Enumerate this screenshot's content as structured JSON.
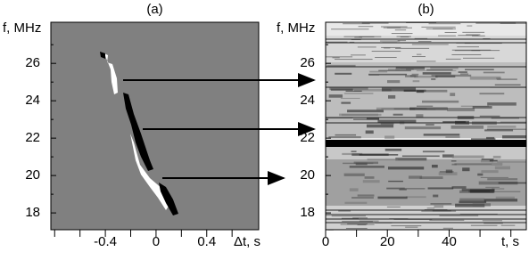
{
  "figure": {
    "panels": [
      {
        "label": "(a)",
        "y_label": "f, MHz",
        "x_label": "Δt, s",
        "xlim": [
          -0.83,
          0.81
        ],
        "ylim": [
          17.1,
          28.2
        ],
        "xticks": [
          -0.4,
          0,
          0.4
        ],
        "x_minor_ticks": [
          -0.8,
          -0.6,
          -0.2,
          0.2,
          0.6
        ],
        "yticks": [
          18,
          20,
          22,
          24,
          26
        ],
        "y_minor_ticks": [
          19,
          21,
          23,
          25,
          27
        ]
      },
      {
        "label": "(b)",
        "y_label": "f, MHz",
        "x_label": "t, s",
        "xlim": [
          0,
          65
        ],
        "ylim": [
          17.1,
          28.2
        ],
        "xticks": [
          0,
          20,
          40
        ],
        "x_minor_ticks": [
          10,
          30,
          50,
          60
        ],
        "yticks": [
          18,
          20,
          22,
          24,
          26
        ],
        "y_minor_ticks": [
          19,
          21,
          23,
          25,
          27
        ]
      }
    ]
  }
}
